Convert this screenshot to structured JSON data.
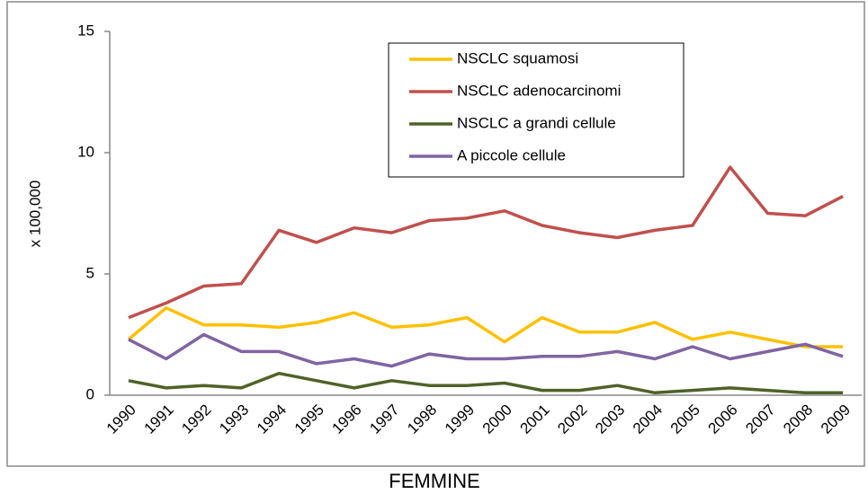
{
  "chart_data": {
    "type": "line",
    "xlabel": "FEMMINE",
    "ylabel": "x 100,000",
    "categories": [
      "1990",
      "1991",
      "1992",
      "1993",
      "1994",
      "1995",
      "1996",
      "1997",
      "1998",
      "1999",
      "2000",
      "2001",
      "2002",
      "2003",
      "2004",
      "2005",
      "2006",
      "2007",
      "2008",
      "2009"
    ],
    "series": [
      {
        "name": "NSCLC squamosi",
        "color": "#ffc000",
        "values": [
          2.3,
          3.6,
          2.9,
          2.9,
          2.8,
          3.0,
          3.4,
          2.8,
          2.9,
          3.2,
          2.2,
          3.2,
          2.6,
          2.6,
          3.0,
          2.3,
          2.6,
          2.3,
          2.0,
          2.0
        ]
      },
      {
        "name": "NSCLC adenocarcinomi",
        "color": "#c0504d",
        "values": [
          3.2,
          3.8,
          4.5,
          4.6,
          6.8,
          6.3,
          6.9,
          6.7,
          7.2,
          7.3,
          7.6,
          7.0,
          6.7,
          6.5,
          6.8,
          7.0,
          9.4,
          7.5,
          7.4,
          8.2
        ]
      },
      {
        "name": "NSCLC a grandi cellule",
        "color": "#4f6228",
        "values": [
          0.6,
          0.3,
          0.4,
          0.3,
          0.9,
          0.6,
          0.3,
          0.6,
          0.4,
          0.4,
          0.5,
          0.2,
          0.2,
          0.4,
          0.1,
          0.2,
          0.3,
          0.2,
          0.1,
          0.1
        ]
      },
      {
        "name": "A piccole cellule",
        "color": "#8064a2",
        "values": [
          2.3,
          1.5,
          2.5,
          1.8,
          1.8,
          1.3,
          1.5,
          1.2,
          1.7,
          1.5,
          1.5,
          1.6,
          1.6,
          1.8,
          1.5,
          2.0,
          1.5,
          1.8,
          2.1,
          1.6
        ]
      }
    ],
    "ylim": [
      0,
      15
    ],
    "yticks": [
      0,
      5,
      10,
      15
    ],
    "grid": false,
    "legend": "top"
  }
}
